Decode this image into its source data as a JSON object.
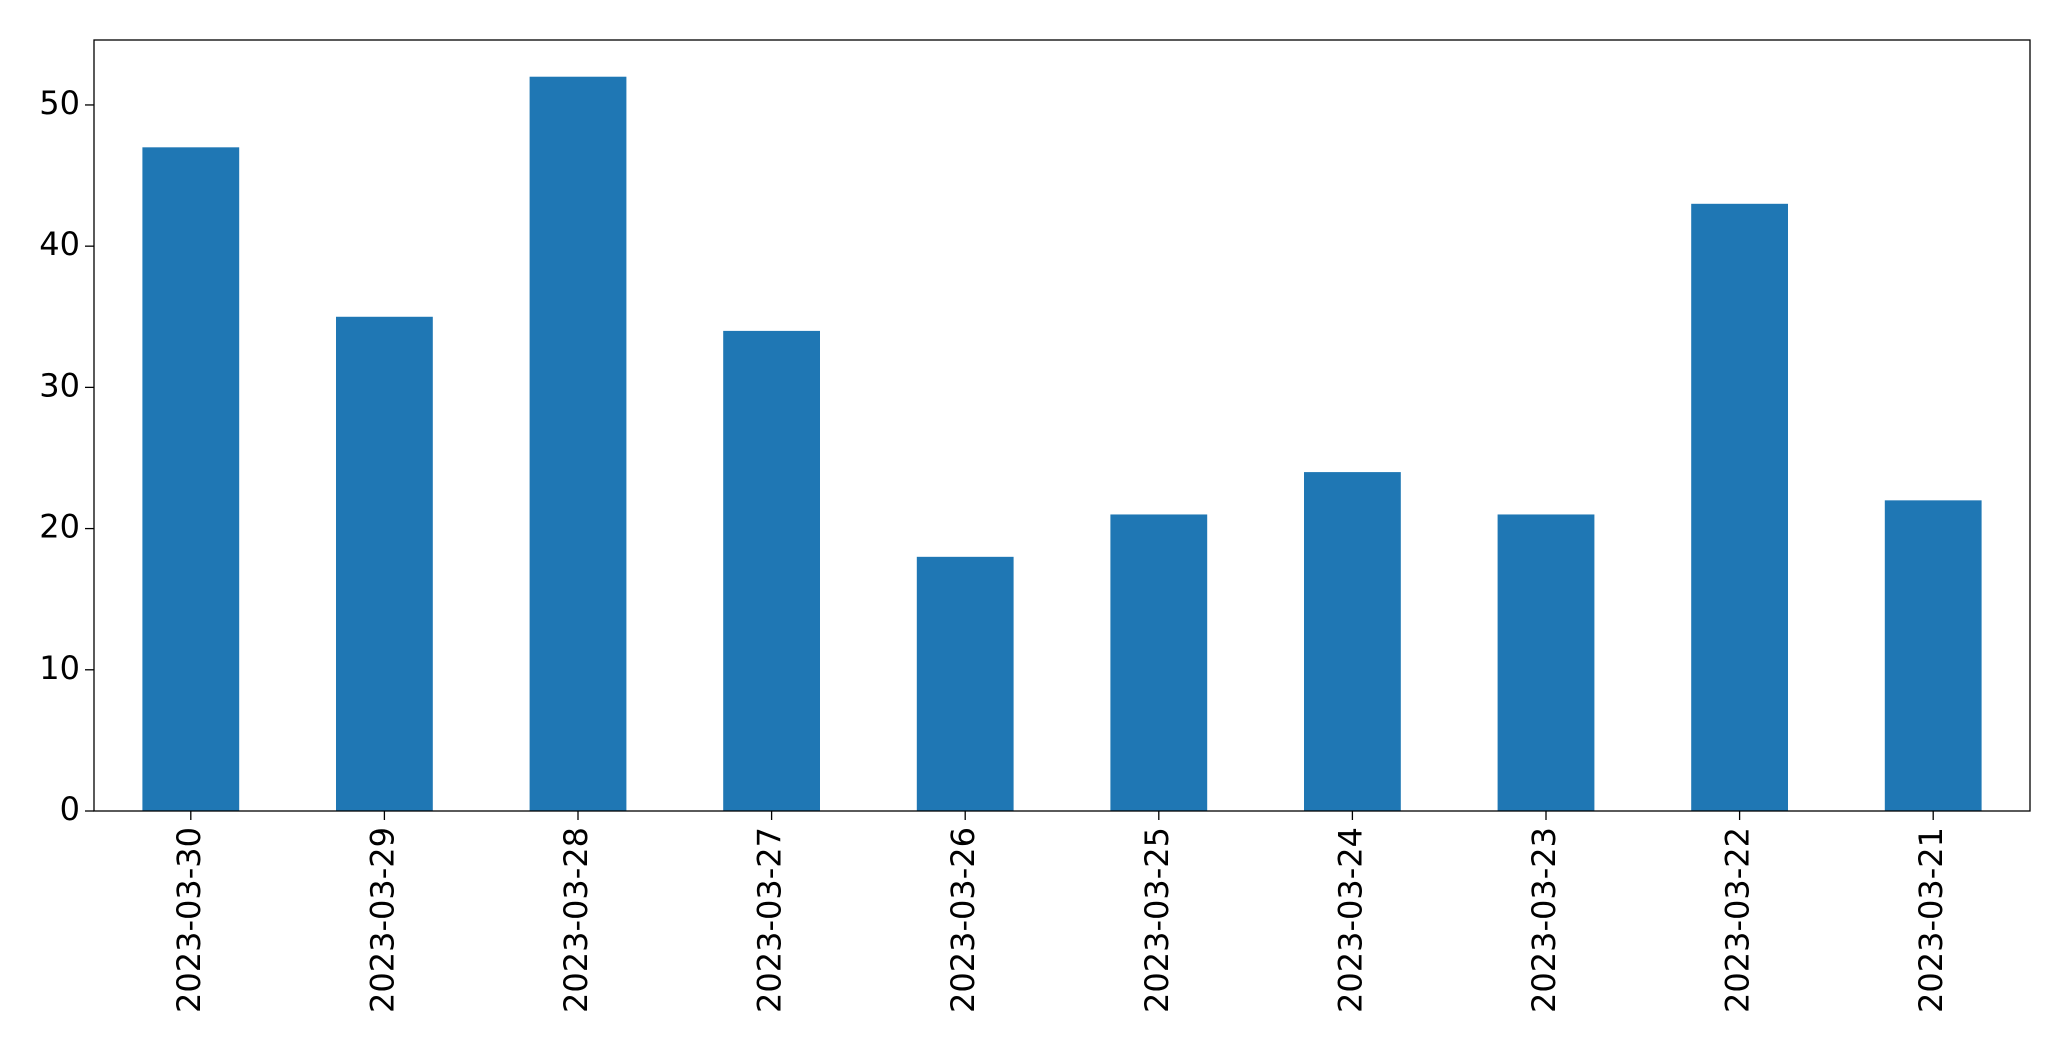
{
  "chart_data": {
    "type": "bar",
    "categories": [
      "2023-03-30",
      "2023-03-29",
      "2023-03-28",
      "2023-03-27",
      "2023-03-26",
      "2023-03-25",
      "2023-03-24",
      "2023-03-23",
      "2023-03-22",
      "2023-03-21"
    ],
    "values": [
      47,
      35,
      52,
      34,
      18,
      21,
      24,
      21,
      43,
      22
    ],
    "color": "#1f77b4",
    "ylim": [
      0,
      54.6
    ],
    "yticks": [
      0,
      10,
      20,
      30,
      40,
      50
    ],
    "grid": false
  }
}
